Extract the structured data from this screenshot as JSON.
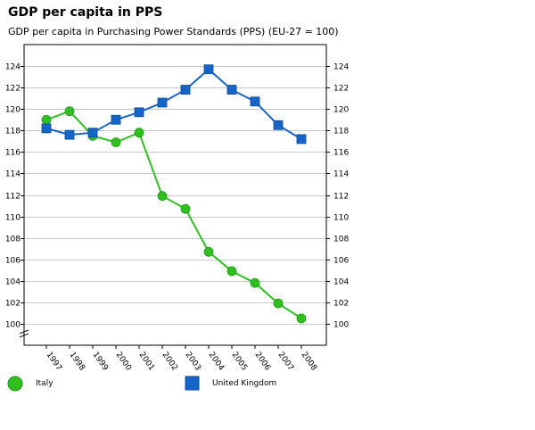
{
  "chart_data": {
    "type": "line",
    "title": "GDP per capita in PPS",
    "subtitle": "GDP per capita in Purchasing Power Standards (PPS) (EU-27 = 100)",
    "xlabel": "",
    "ylabel": "",
    "categories": [
      "1997",
      "1998",
      "1999",
      "2000",
      "2001",
      "2002",
      "2003",
      "2004",
      "2005",
      "2006",
      "2007",
      "2008"
    ],
    "ylim": [
      98,
      126
    ],
    "yticks": [
      100,
      102,
      104,
      106,
      108,
      110,
      112,
      114,
      116,
      118,
      120,
      122,
      124
    ],
    "ytick_labels": [
      "100",
      "102",
      "104",
      "106",
      "108",
      "110",
      "112",
      "114",
      "116",
      "118",
      "120",
      "122",
      "124"
    ],
    "grid": true,
    "legend_position": "bottom",
    "series": [
      {
        "name": "Italy",
        "marker": "circle",
        "color": "#2fbf1f",
        "values": [
          119.0,
          119.8,
          117.5,
          116.9,
          117.8,
          111.9,
          110.7,
          106.7,
          104.9,
          103.8,
          101.9,
          100.5
        ]
      },
      {
        "name": "United Kingdom",
        "marker": "square",
        "color": "#1565c8",
        "values": [
          118.2,
          117.6,
          117.8,
          119.0,
          119.7,
          120.6,
          121.8,
          123.7,
          121.8,
          120.7,
          118.5,
          117.2
        ]
      }
    ]
  }
}
